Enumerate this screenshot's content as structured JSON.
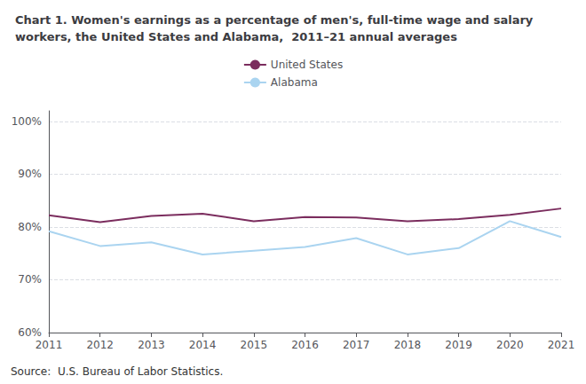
{
  "chart_data": {
    "type": "line",
    "title": "Chart 1. Women's earnings as a percentage of men's, full-time wage and salary\nworkers, the United States and Alabama,  2011–21 annual averages",
    "annotation": "Source:  U.S. Bureau of Labor Statistics.",
    "x": [
      2011,
      2012,
      2013,
      2014,
      2015,
      2016,
      2017,
      2018,
      2019,
      2020,
      2021
    ],
    "series": [
      {
        "name": "United States",
        "color": "#7b2d5e",
        "values": [
          82.2,
          80.9,
          82.1,
          82.5,
          81.1,
          81.9,
          81.8,
          81.1,
          81.5,
          82.3,
          83.5
        ]
      },
      {
        "name": "Alabama",
        "color": "#aad4f0",
        "values": [
          79.2,
          76.4,
          77.1,
          74.8,
          75.5,
          76.2,
          77.9,
          74.8,
          76.0,
          81.1,
          78.1
        ]
      }
    ],
    "xlim": [
      2011,
      2021
    ],
    "xticks": [
      2011,
      2012,
      2013,
      2014,
      2015,
      2016,
      2017,
      2018,
      2019,
      2020,
      2021
    ],
    "ylim": [
      60,
      102
    ],
    "yticks": [
      {
        "value": 60,
        "label": "60%"
      },
      {
        "value": 70,
        "label": "70%"
      },
      {
        "value": 80,
        "label": "80%"
      },
      {
        "value": 90,
        "label": "90%"
      },
      {
        "value": 100,
        "label": "100%"
      }
    ],
    "grid": true,
    "legend": "top"
  }
}
